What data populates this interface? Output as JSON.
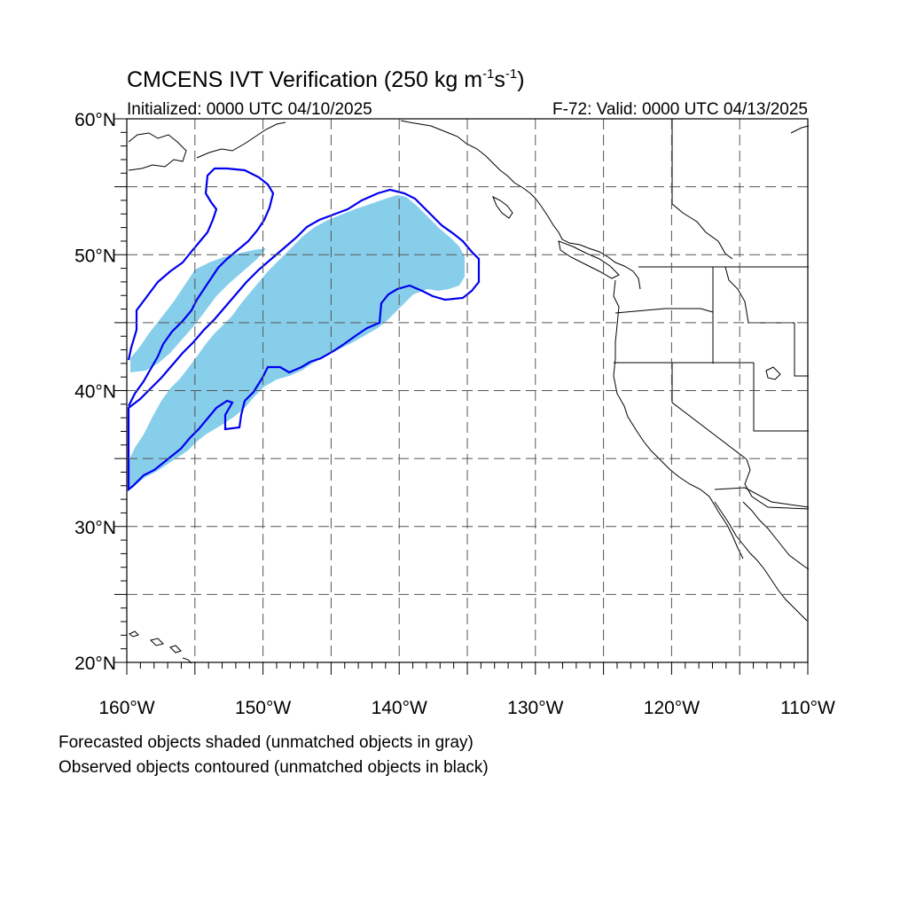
{
  "title": {
    "main": "CMCENS IVT Verification (250 kg m",
    "sup1": "-1",
    "mid": "s",
    "sup2": "-1",
    "close": ")"
  },
  "subtitle_left": "Initialized: 0000 UTC 04/10/2025",
  "subtitle_right": "F-72: Valid: 0000 UTC 04/13/2025",
  "footer_line1": "Forecasted objects shaded (unmatched objects in gray)",
  "footer_line2": "Observed objects contoured (unmatched objects in black)",
  "map": {
    "lon_range": [
      -160,
      -110
    ],
    "lat_range": [
      20,
      60
    ],
    "lat_ticks": [
      {
        "value": 20,
        "label": "20°N"
      },
      {
        "value": 30,
        "label": "30°N"
      },
      {
        "value": 40,
        "label": "40°N"
      },
      {
        "value": 50,
        "label": "50°N"
      },
      {
        "value": 60,
        "label": "60°N"
      }
    ],
    "lon_ticks": [
      {
        "value": -160,
        "label": "160°W"
      },
      {
        "value": -150,
        "label": "150°W"
      },
      {
        "value": -140,
        "label": "140°W"
      },
      {
        "value": -130,
        "label": "130°W"
      },
      {
        "value": -120,
        "label": "120°W"
      },
      {
        "value": -110,
        "label": "110°W"
      }
    ],
    "grid_lons": [
      -155,
      -150,
      -145,
      -140,
      -135,
      -130,
      -125,
      -120,
      -115
    ],
    "grid_lats": [
      25,
      30,
      35,
      40,
      45,
      50,
      55
    ],
    "colors": {
      "forecast_fill": "#87ceeb",
      "observed_contour": "#0000ee",
      "coast": "#000000",
      "grid": "#555555"
    }
  }
}
